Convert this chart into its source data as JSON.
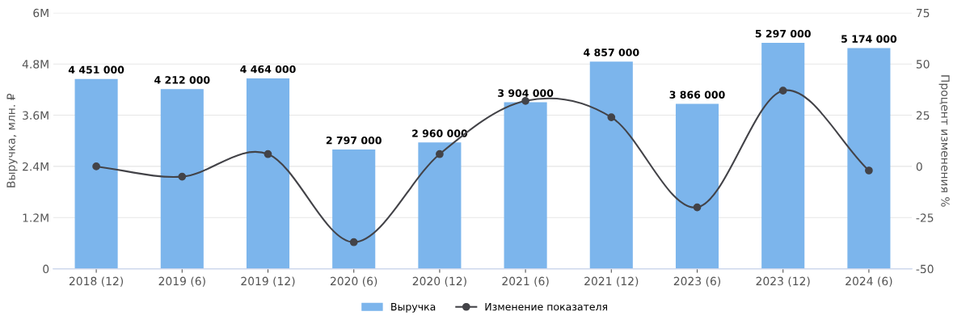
{
  "chart_data": {
    "type": "bar",
    "categories": [
      "2018 (12)",
      "2019 (6)",
      "2019 (12)",
      "2020 (6)",
      "2020 (12)",
      "2021 (6)",
      "2021 (12)",
      "2023 (6)",
      "2023 (12)",
      "2024 (6)"
    ],
    "series": [
      {
        "name": "Выручка",
        "color": "#7cb5ec",
        "values": [
          4451000,
          4212000,
          4464000,
          2797000,
          2960000,
          3904000,
          4857000,
          3866000,
          5297000,
          5174000
        ],
        "value_labels": [
          "4 451 000",
          "4 212 000",
          "4 464 000",
          "2 797 000",
          "2 960 000",
          "3 904 000",
          "4 857 000",
          "3 866 000",
          "5 297 000",
          "5 174 000"
        ]
      },
      {
        "name": "Изменение показателя",
        "type": "line",
        "axis": "y2",
        "color": "#434348",
        "marker": "circle",
        "values": [
          0,
          -5,
          6,
          -37,
          6,
          32,
          24,
          -20,
          37,
          -2
        ]
      }
    ],
    "ylabel": "Выручка, млн. ₽",
    "y2label": "Процент изменения %",
    "ylim": [
      0,
      6000000
    ],
    "yticks": [
      0,
      {
        "value": 1200000,
        "label": "1.2M"
      },
      {
        "value": 2400000,
        "label": "2.4M"
      },
      {
        "value": 3600000,
        "label": "3.6M"
      },
      {
        "value": 4800000,
        "label": "4.8M"
      },
      {
        "value": 6000000,
        "label": "6M"
      }
    ],
    "y2lim": [
      -50,
      75
    ],
    "y2ticks": [
      -50,
      -25,
      0,
      25,
      50,
      75
    ],
    "grid": "y",
    "legend": "bottom"
  }
}
